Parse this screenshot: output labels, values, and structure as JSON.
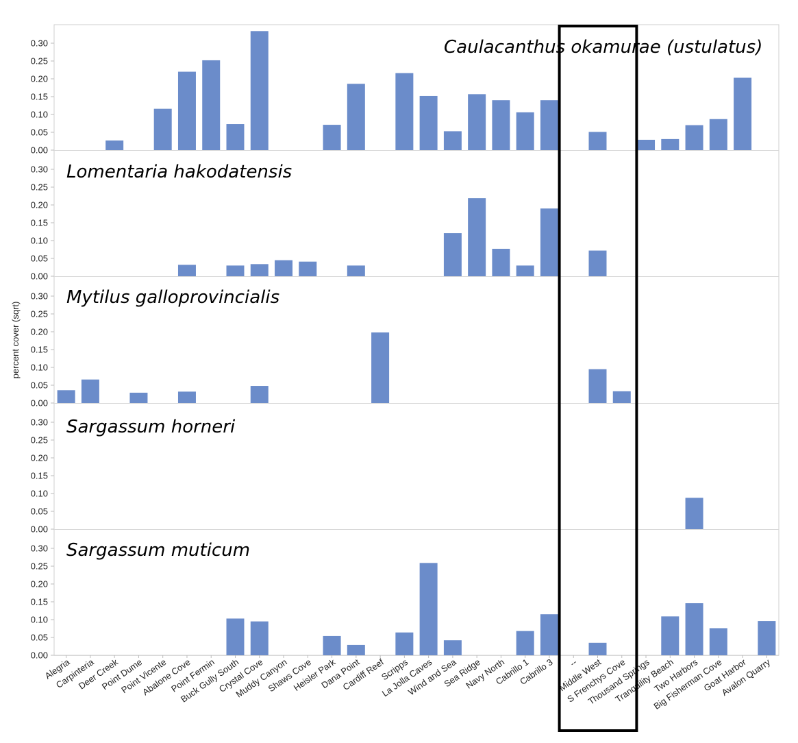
{
  "chart_data": {
    "type": "bar",
    "layout": "small-multiples",
    "ylabel": "percent cover (sqrt)",
    "ylim": [
      0,
      0.33
    ],
    "yticks": [
      "0.00",
      "0.05",
      "0.10",
      "0.15",
      "0.20",
      "0.25",
      "0.30"
    ],
    "grid": false,
    "bar_color": "#6b8cca",
    "highlight_box": {
      "covers_categories": [
        "--",
        "Middle West",
        "S Frenchys Cove"
      ],
      "color": "#000000"
    },
    "categories": [
      "Alegria",
      "Carpinteria",
      "Deer Creek",
      "Point Dume",
      "Point Vicente",
      "Abalone Cove",
      "Point Fermin",
      "Buck Gully South",
      "Crystal Cove",
      "Muddy Canyon",
      "Shaws Cove",
      "Heisler Park",
      "Dana Point",
      "Cardiff Reef",
      "Scripps",
      "La Jolla Caves",
      "Wind and Sea",
      "Sea Ridge",
      "Navy North",
      "Cabrillo 1",
      "Cabrillo 3",
      "--",
      "Middle West",
      "S Frenchys Cove",
      "Thousand Springs",
      "Tranquility Beach",
      "Two Harbors",
      "Big Fisherman Cove",
      "Goat Harbor",
      "Avalon Quarry"
    ],
    "series": [
      {
        "name": "Caulacanthus okamurae (ustulatus)",
        "values": [
          0,
          0,
          0.027,
          0,
          0.116,
          0.22,
          0.252,
          0.073,
          0.334,
          0,
          0,
          0.071,
          0.186,
          0,
          0.216,
          0.152,
          0.053,
          0.157,
          0.14,
          0.106,
          0.14,
          0,
          0.051,
          0,
          0.029,
          0.031,
          0.07,
          0.087,
          0.203,
          0
        ]
      },
      {
        "name": "Lomentaria hakodatensis",
        "values": [
          0,
          0,
          0,
          0,
          0,
          0.032,
          0,
          0.03,
          0.034,
          0.045,
          0.041,
          0,
          0.03,
          0,
          0,
          0,
          0.121,
          0.219,
          0.077,
          0.03,
          0.19,
          0,
          0.072,
          0,
          0,
          0,
          0,
          0,
          0,
          0
        ]
      },
      {
        "name": "Mytilus galloprovincialis",
        "values": [
          0.036,
          0.066,
          0,
          0.029,
          0,
          0.032,
          0,
          0,
          0.048,
          0,
          0,
          0,
          0,
          0.198,
          0,
          0,
          0,
          0,
          0,
          0,
          0,
          0,
          0.095,
          0.033,
          0,
          0,
          0,
          0,
          0,
          0
        ]
      },
      {
        "name": "Sargassum horneri",
        "values": [
          0,
          0,
          0,
          0,
          0,
          0,
          0,
          0,
          0,
          0,
          0,
          0,
          0,
          0,
          0,
          0,
          0,
          0,
          0,
          0,
          0,
          0,
          0,
          0,
          0,
          0,
          0.088,
          0,
          0,
          0
        ]
      },
      {
        "name": "Sargassum muticum",
        "values": [
          0,
          0,
          0,
          0,
          0,
          0,
          0,
          0.103,
          0.095,
          0,
          0,
          0.054,
          0.029,
          0,
          0.064,
          0.259,
          0.042,
          0,
          0,
          0.068,
          0.115,
          0,
          0.035,
          0,
          0,
          0.109,
          0.146,
          0.076,
          0,
          0.096
        ]
      }
    ]
  }
}
